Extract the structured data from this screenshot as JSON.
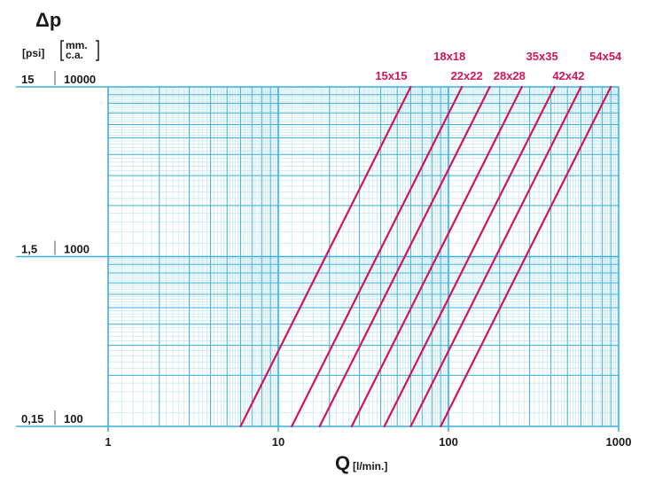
{
  "chart_data": {
    "type": "line",
    "x_scale": "log",
    "y_scale": "log",
    "xlim": [
      1,
      1000
    ],
    "ylim": [
      100,
      10000
    ],
    "grid": true,
    "y_axis_title": "Δp",
    "y_unit_psi": "[psi]",
    "y_unit_mm_line1": "mm.",
    "y_unit_mm_line2": "c.a.",
    "x_axis_title": "Q",
    "x_unit": "[l/min.]",
    "x_ticks": [
      {
        "value": 1,
        "label": "1"
      },
      {
        "value": 10,
        "label": "10"
      },
      {
        "value": 100,
        "label": "100"
      },
      {
        "value": 1000,
        "label": "1000"
      }
    ],
    "y_ticks": [
      {
        "value": 10000,
        "label_mm": "10000",
        "label_psi": "15"
      },
      {
        "value": 1000,
        "label_mm": "1000",
        "label_psi": "1,5"
      },
      {
        "value": 100,
        "label_mm": "100",
        "label_psi": "0,15"
      }
    ],
    "line_color": "#d4145a",
    "grid_major_color": "#3bb0d8",
    "grid_minor_color": "#a9def0",
    "series": [
      {
        "name": "15x15",
        "points": [
          [
            6,
            100
          ],
          [
            60,
            10000
          ]
        ]
      },
      {
        "name": "18x18",
        "points": [
          [
            12,
            100
          ],
          [
            120,
            10000
          ]
        ]
      },
      {
        "name": "22x22",
        "points": [
          [
            17.5,
            100
          ],
          [
            175,
            10000
          ]
        ]
      },
      {
        "name": "28x28",
        "points": [
          [
            27,
            100
          ],
          [
            270,
            10000
          ]
        ]
      },
      {
        "name": "35x35",
        "points": [
          [
            42,
            100
          ],
          [
            420,
            10000
          ]
        ]
      },
      {
        "name": "42x42",
        "points": [
          [
            60,
            100
          ],
          [
            600,
            10000
          ]
        ]
      },
      {
        "name": "54x54",
        "points": [
          [
            90,
            100
          ],
          [
            900,
            10000
          ]
        ]
      }
    ]
  }
}
